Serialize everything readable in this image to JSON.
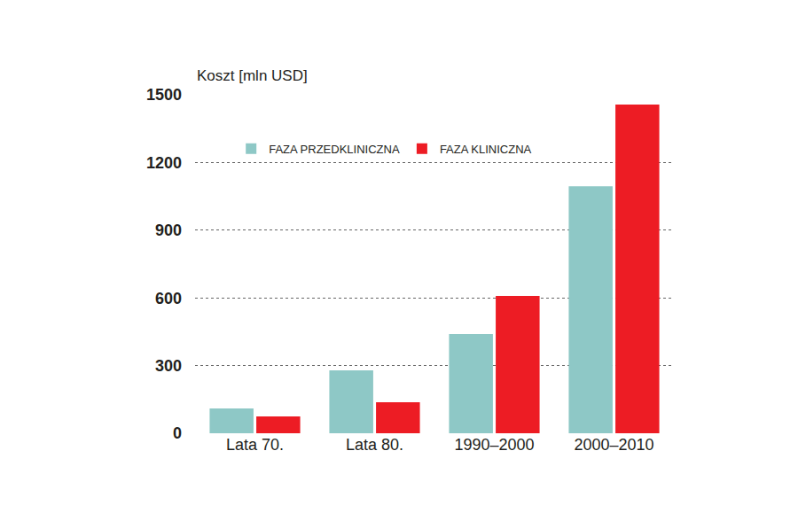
{
  "chart_data": {
    "type": "bar",
    "y_label": "Koszt [mln USD]",
    "categories": [
      "Lata 70.",
      "Lata 80.",
      "1990–2000",
      "2000–2010"
    ],
    "series": [
      {
        "name": "FAZA PRZEDKLINICZNA",
        "color": "#8ec8c6",
        "values": [
          110,
          279,
          440,
          1095
        ]
      },
      {
        "name": "FAZA KLINICZNA",
        "color": "#ed1c24",
        "values": [
          75,
          137,
          609,
          1457
        ]
      }
    ],
    "ylim": [
      0,
      1500
    ],
    "yticks": [
      0,
      300,
      600,
      900,
      1200,
      1500
    ],
    "grid": true,
    "legend": "upper left"
  }
}
